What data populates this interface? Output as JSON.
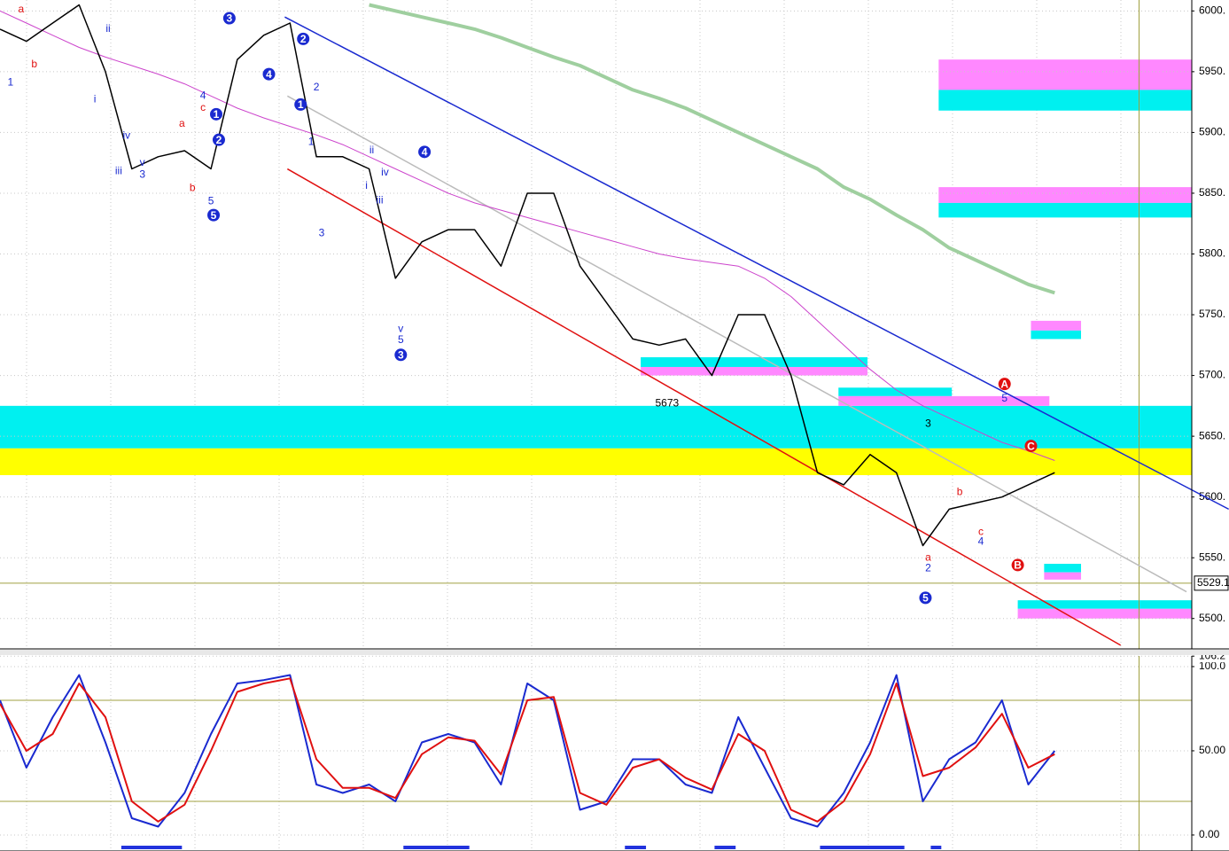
{
  "chart_data": [
    {
      "type": "line",
      "xlim": [
        0,
        45.2
      ],
      "ylim": [
        5475,
        6009
      ],
      "grid": true,
      "yticks": [
        {
          "value": 5500,
          "label": "5500."
        },
        {
          "value": 5550,
          "label": "5550."
        },
        {
          "value": 5600,
          "label": "5600."
        },
        {
          "value": 5650,
          "label": "5650."
        },
        {
          "value": 5700,
          "label": "5700."
        },
        {
          "value": 5750,
          "label": "5750."
        },
        {
          "value": 5800,
          "label": "5800."
        },
        {
          "value": 5850,
          "label": "5850."
        },
        {
          "value": 5900,
          "label": "5900."
        },
        {
          "value": 5950,
          "label": "5950."
        },
        {
          "value": 6000,
          "label": "6000."
        }
      ],
      "zones": [
        {
          "color": "#00f0f0",
          "x": [
            0,
            45.2
          ],
          "y": [
            5640,
            5675
          ]
        },
        {
          "color": "#ffff00",
          "x": [
            0,
            45.2
          ],
          "y": [
            5618,
            5640
          ]
        },
        {
          "color": "#ff88ff",
          "x": [
            35.6,
            45.2
          ],
          "y": [
            5935,
            5960
          ]
        },
        {
          "color": "#00f0f0",
          "x": [
            35.6,
            45.2
          ],
          "y": [
            5918,
            5935
          ]
        },
        {
          "color": "#ff88ff",
          "x": [
            35.6,
            45.2
          ],
          "y": [
            5842,
            5855
          ]
        },
        {
          "color": "#00f0f0",
          "x": [
            35.6,
            45.2
          ],
          "y": [
            5830,
            5842
          ]
        },
        {
          "color": "#ff88ff",
          "x": [
            39.1,
            41
          ],
          "y": [
            5737,
            5745
          ]
        },
        {
          "color": "#00f0f0",
          "x": [
            39.1,
            41
          ],
          "y": [
            5730,
            5737
          ]
        },
        {
          "color": "#00f0f0",
          "x": [
            24.3,
            32.9
          ],
          "y": [
            5707,
            5715
          ]
        },
        {
          "color": "#ff88ff",
          "x": [
            24.3,
            32.9
          ],
          "y": [
            5700,
            5707
          ]
        },
        {
          "color": "#00f0f0",
          "x": [
            31.8,
            36.1
          ],
          "y": [
            5683,
            5690
          ]
        },
        {
          "color": "#ff88ff",
          "x": [
            31.8,
            39.8
          ],
          "y": [
            5675,
            5683
          ]
        },
        {
          "color": "#00f0f0",
          "x": [
            39.6,
            41
          ],
          "y": [
            5538,
            5545
          ]
        },
        {
          "color": "#ff88ff",
          "x": [
            39.6,
            41
          ],
          "y": [
            5532,
            5538
          ]
        },
        {
          "color": "#00f0f0",
          "x": [
            38.6,
            45.2
          ],
          "y": [
            5508,
            5515
          ]
        },
        {
          "color": "#ff88ff",
          "x": [
            38.6,
            45.2
          ],
          "y": [
            5500,
            5508
          ]
        }
      ],
      "trendlines": [
        {
          "color": "#1a2ad0",
          "x": [
            10.8,
            46.6
          ],
          "y": [
            5995,
            5590
          ]
        },
        {
          "color": "#e01010",
          "x": [
            10.9,
            42.5
          ],
          "y": [
            5870,
            5478
          ]
        },
        {
          "color": "#bbbbbb",
          "x": [
            10.9,
            45
          ],
          "y": [
            5930,
            5522
          ]
        }
      ],
      "series": [
        {
          "color": "#9fcf9f",
          "width": 4,
          "values": [
            null,
            null,
            null,
            null,
            null,
            null,
            null,
            null,
            null,
            null,
            null,
            null,
            null,
            null,
            6005,
            6000,
            5995,
            5990,
            5985,
            5978,
            5970,
            5962,
            5955,
            5945,
            5935,
            5928,
            5920,
            5910,
            5900,
            5890,
            5880,
            5870,
            5855,
            5845,
            5832,
            5820,
            5805,
            5795,
            5785,
            5775,
            5768
          ]
        },
        {
          "color": "#cc44cc",
          "width": 1,
          "values": [
            6000,
            5990,
            5980,
            5970,
            5962,
            5955,
            5948,
            5940,
            5930,
            5920,
            5912,
            5905,
            5898,
            5890,
            5880,
            5870,
            5860,
            5850,
            5842,
            5836,
            5830,
            5824,
            5818,
            5812,
            5806,
            5800,
            5796,
            5793,
            5790,
            5780,
            5765,
            5745,
            5725,
            5705,
            5688,
            5675,
            5665,
            5655,
            5645,
            5638,
            5630
          ]
        },
        {
          "color": "#000000",
          "width": 1.5,
          "values": [
            5985,
            5975,
            5990,
            6005,
            5950,
            5870,
            5880,
            5885,
            5870,
            5960,
            5980,
            5990,
            5880,
            5880,
            5870,
            5780,
            5810,
            5820,
            5820,
            5790,
            5850,
            5850,
            5790,
            5760,
            5730,
            5725,
            5730,
            5700,
            5750,
            5750,
            5700,
            5620,
            5610,
            5635,
            5620,
            5560,
            5590,
            5595,
            5600,
            5610,
            5620
          ]
        }
      ],
      "hline": {
        "value": 5529.1,
        "label": "5529.1"
      },
      "vline": 43.2,
      "annotations": [
        {
          "text": "1",
          "x": 0.4,
          "y": 5941,
          "color": "#1a2ad0"
        },
        {
          "text": "a",
          "x": 0.8,
          "y": 6001,
          "color": "#e01010"
        },
        {
          "text": "b",
          "x": 1.3,
          "y": 5956,
          "color": "#e01010"
        },
        {
          "text": "i",
          "x": 3.6,
          "y": 5927,
          "color": "#1a2ad0"
        },
        {
          "text": "ii",
          "x": 4.1,
          "y": 5985,
          "color": "#1a2ad0"
        },
        {
          "text": "iii",
          "x": 4.5,
          "y": 5868,
          "color": "#1a2ad0"
        },
        {
          "text": "iv",
          "x": 4.8,
          "y": 5897,
          "color": "#1a2ad0"
        },
        {
          "text": "v",
          "x": 5.4,
          "y": 5875,
          "color": "#1a2ad0"
        },
        {
          "text": "3",
          "x": 5.4,
          "y": 5865,
          "color": "#1a2ad0"
        },
        {
          "text": "a",
          "x": 6.9,
          "y": 5907,
          "color": "#e01010"
        },
        {
          "text": "b",
          "x": 7.3,
          "y": 5854,
          "color": "#e01010"
        },
        {
          "text": "4",
          "x": 7.7,
          "y": 5930,
          "color": "#1a2ad0"
        },
        {
          "text": "c",
          "x": 7.7,
          "y": 5920,
          "color": "#e01010"
        },
        {
          "text": "5",
          "x": 8.0,
          "y": 5843,
          "color": "#1a2ad0"
        },
        {
          "text": "5",
          "x": 8.1,
          "y": 5832,
          "color": "#1a2ad0",
          "circle": true
        },
        {
          "text": "1",
          "x": 8.2,
          "y": 5915,
          "color": "#1a2ad0",
          "circle": true
        },
        {
          "text": "2",
          "x": 8.3,
          "y": 5894,
          "color": "#1a2ad0",
          "circle": true
        },
        {
          "text": "3",
          "x": 8.7,
          "y": 5994,
          "color": "#1a2ad0",
          "circle": true
        },
        {
          "text": "4",
          "x": 10.2,
          "y": 5948,
          "color": "#1a2ad0",
          "circle": true
        },
        {
          "text": "2",
          "x": 11.5,
          "y": 5977,
          "color": "#1a2ad0",
          "circle": true
        },
        {
          "text": "1",
          "x": 11.4,
          "y": 5923,
          "color": "#1a2ad0",
          "circle": true
        },
        {
          "text": "1",
          "x": 11.8,
          "y": 5892,
          "color": "#1a2ad0"
        },
        {
          "text": "2",
          "x": 12.0,
          "y": 5937,
          "color": "#1a2ad0"
        },
        {
          "text": "3",
          "x": 12.2,
          "y": 5817,
          "color": "#1a2ad0"
        },
        {
          "text": "ii",
          "x": 14.1,
          "y": 5885,
          "color": "#1a2ad0"
        },
        {
          "text": "i",
          "x": 13.9,
          "y": 5856,
          "color": "#1a2ad0"
        },
        {
          "text": "iii",
          "x": 14.4,
          "y": 5844,
          "color": "#1a2ad0"
        },
        {
          "text": "iv",
          "x": 14.6,
          "y": 5867,
          "color": "#1a2ad0"
        },
        {
          "text": "4",
          "x": 16.1,
          "y": 5884,
          "color": "#1a2ad0",
          "circle": true
        },
        {
          "text": "v",
          "x": 15.2,
          "y": 5738,
          "color": "#1a2ad0"
        },
        {
          "text": "5",
          "x": 15.2,
          "y": 5729,
          "color": "#1a2ad0"
        },
        {
          "text": "3",
          "x": 15.2,
          "y": 5717,
          "color": "#1a2ad0",
          "circle": true
        },
        {
          "text": "5673",
          "x": 25.3,
          "y": 5677,
          "color": "#000000"
        },
        {
          "text": "3",
          "x": 35.2,
          "y": 5660,
          "color": "#000000"
        },
        {
          "text": "A",
          "x": 38.1,
          "y": 5693,
          "color": "#e01010",
          "circle": true
        },
        {
          "text": "5",
          "x": 38.1,
          "y": 5681,
          "color": "#1a2ad0"
        },
        {
          "text": "C",
          "x": 39.1,
          "y": 5642,
          "color": "#e01010",
          "circle": true
        },
        {
          "text": "b",
          "x": 36.4,
          "y": 5604,
          "color": "#e01010"
        },
        {
          "text": "c",
          "x": 37.2,
          "y": 5571,
          "color": "#e01010"
        },
        {
          "text": "4",
          "x": 37.2,
          "y": 5563,
          "color": "#1a2ad0"
        },
        {
          "text": "a",
          "x": 35.2,
          "y": 5550,
          "color": "#e01010"
        },
        {
          "text": "2",
          "x": 35.2,
          "y": 5541,
          "color": "#1a2ad0"
        },
        {
          "text": "B",
          "x": 38.6,
          "y": 5544,
          "color": "#e01010",
          "circle": true
        },
        {
          "text": "5",
          "x": 35.1,
          "y": 5517,
          "color": "#1a2ad0",
          "circle": true
        }
      ]
    },
    {
      "type": "line",
      "xlim": [
        0,
        45.2
      ],
      "ylim": [
        -9.5,
        106.3
      ],
      "grid": true,
      "yticks": [
        {
          "value": 0,
          "label": "0.00"
        },
        {
          "value": 50,
          "label": "50.00"
        },
        {
          "value": 100,
          "label": "100.0"
        },
        {
          "value": 106.2,
          "label": "106.2"
        }
      ],
      "hlines": [
        20,
        80
      ],
      "series": [
        {
          "color": "#1a2ad0",
          "width": 2,
          "values": [
            80,
            40,
            70,
            95,
            55,
            10,
            5,
            25,
            60,
            90,
            92,
            95,
            30,
            25,
            30,
            20,
            55,
            60,
            55,
            30,
            90,
            80,
            15,
            20,
            45,
            45,
            30,
            25,
            70,
            40,
            10,
            5,
            25,
            55,
            95,
            20,
            45,
            55,
            80,
            30,
            50
          ]
        },
        {
          "color": "#e01010",
          "width": 2,
          "values": [
            78,
            50,
            60,
            90,
            70,
            20,
            8,
            18,
            50,
            85,
            90,
            93,
            45,
            28,
            28,
            22,
            48,
            58,
            56,
            36,
            80,
            82,
            25,
            18,
            40,
            45,
            34,
            27,
            60,
            50,
            15,
            8,
            20,
            48,
            90,
            35,
            40,
            52,
            72,
            40,
            48
          ]
        }
      ],
      "signal_bars": {
        "color": "#2233dd",
        "ranges": [
          [
            4.6,
            6.9
          ],
          [
            15.3,
            17.8
          ],
          [
            23.7,
            24.5
          ],
          [
            27.1,
            27.9
          ],
          [
            31.1,
            34.3
          ],
          [
            35.3,
            35.7
          ]
        ]
      },
      "vline": 43.2
    }
  ]
}
